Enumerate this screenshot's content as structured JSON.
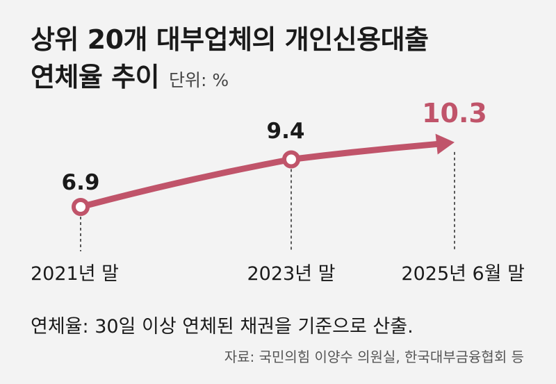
{
  "header": {
    "title_line1": "상위 20개 대부업체의 개인신용대출",
    "title_line2": "연체율 추이",
    "unit": "단위: %"
  },
  "colors": {
    "line": "#c0546a",
    "highlight": "#c0546a",
    "guide": "#333333",
    "background": "#f3f3f3"
  },
  "chart_data": {
    "type": "line",
    "categories": [
      "2021년 말",
      "2023년 말",
      "2025년 6월 말"
    ],
    "values": [
      6.9,
      9.4,
      10.3
    ],
    "value_labels": [
      "6.9",
      "9.4",
      "10.3"
    ],
    "highlight_last": true,
    "last_point_marker": "arrow",
    "grid": false,
    "legend": "none"
  },
  "footer": {
    "note": "연체율: 30일 이상 연체된 채권을 기준으로 산출.",
    "source": "자료: 국민의힘 이양수 의원실, 한국대부금융협회 등"
  }
}
